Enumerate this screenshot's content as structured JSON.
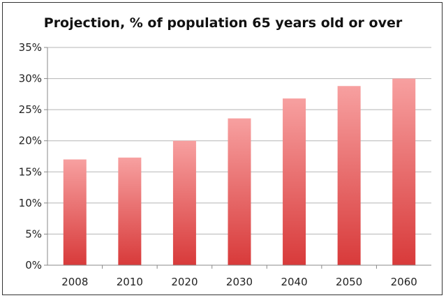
{
  "chart_data": {
    "type": "bar",
    "title": "Projection, % of population 65 years old or over",
    "categories": [
      "2008",
      "2010",
      "2020",
      "2030",
      "2040",
      "2050",
      "2060"
    ],
    "values": [
      17.0,
      17.3,
      20.0,
      23.6,
      26.8,
      28.8,
      30.0
    ],
    "ylim": [
      0,
      35
    ],
    "yticks": [
      0,
      5,
      10,
      15,
      20,
      25,
      30,
      35
    ],
    "ytick_labels": [
      "0%",
      "5%",
      "10%",
      "15%",
      "20%",
      "25%",
      "30%",
      "35%"
    ],
    "grid": true,
    "bar_color_top": "#f7a0a0",
    "bar_color_bottom": "#d83a3a"
  }
}
